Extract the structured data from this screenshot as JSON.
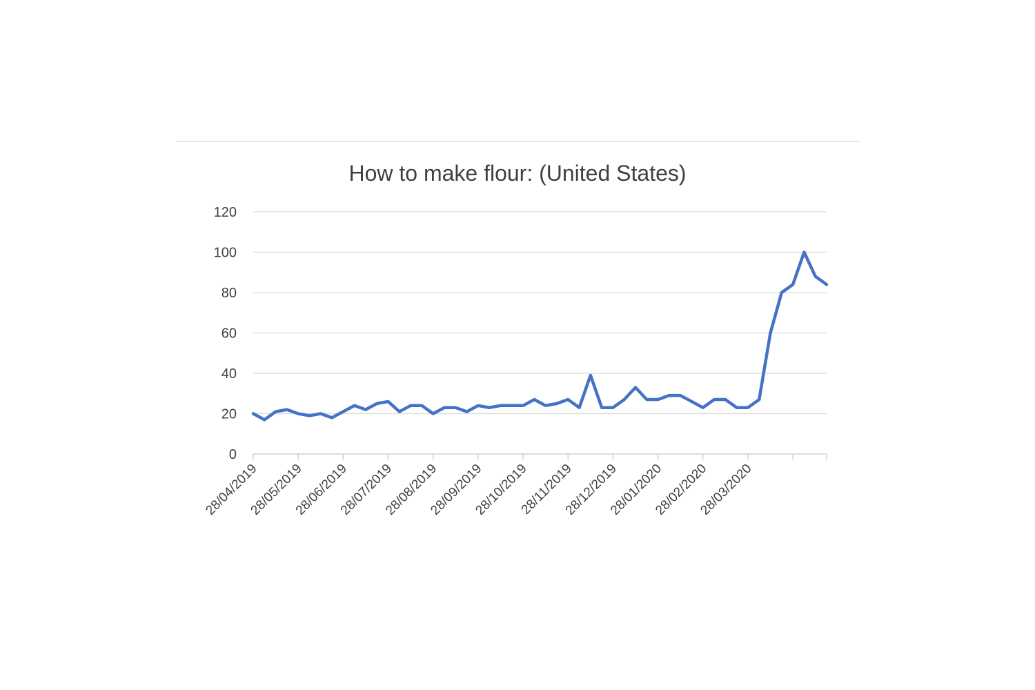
{
  "chart_data": {
    "type": "line",
    "title": "How to make flour: (United States)",
    "xlabel": "",
    "ylabel": "",
    "ylim": [
      0,
      120
    ],
    "y_ticks": [
      0,
      20,
      40,
      60,
      80,
      100,
      120
    ],
    "x_tick_labels": [
      "28/04/2019",
      "28/05/2019",
      "28/06/2019",
      "28/07/2019",
      "28/08/2019",
      "28/09/2019",
      "28/10/2019",
      "28/11/2019",
      "28/12/2019",
      "28/01/2020",
      "28/02/2020",
      "28/03/2020"
    ],
    "grid": true,
    "legend": "none",
    "series": [
      {
        "color": "#4472C4",
        "values": [
          20,
          17,
          21,
          22,
          20,
          19,
          20,
          18,
          21,
          24,
          22,
          25,
          26,
          21,
          24,
          24,
          20,
          23,
          23,
          21,
          24,
          23,
          24,
          24,
          24,
          27,
          24,
          25,
          27,
          23,
          39,
          23,
          23,
          27,
          33,
          27,
          27,
          29,
          29,
          26,
          23,
          27,
          27,
          23,
          23,
          27,
          60,
          80,
          84,
          100,
          88,
          84
        ]
      }
    ]
  }
}
